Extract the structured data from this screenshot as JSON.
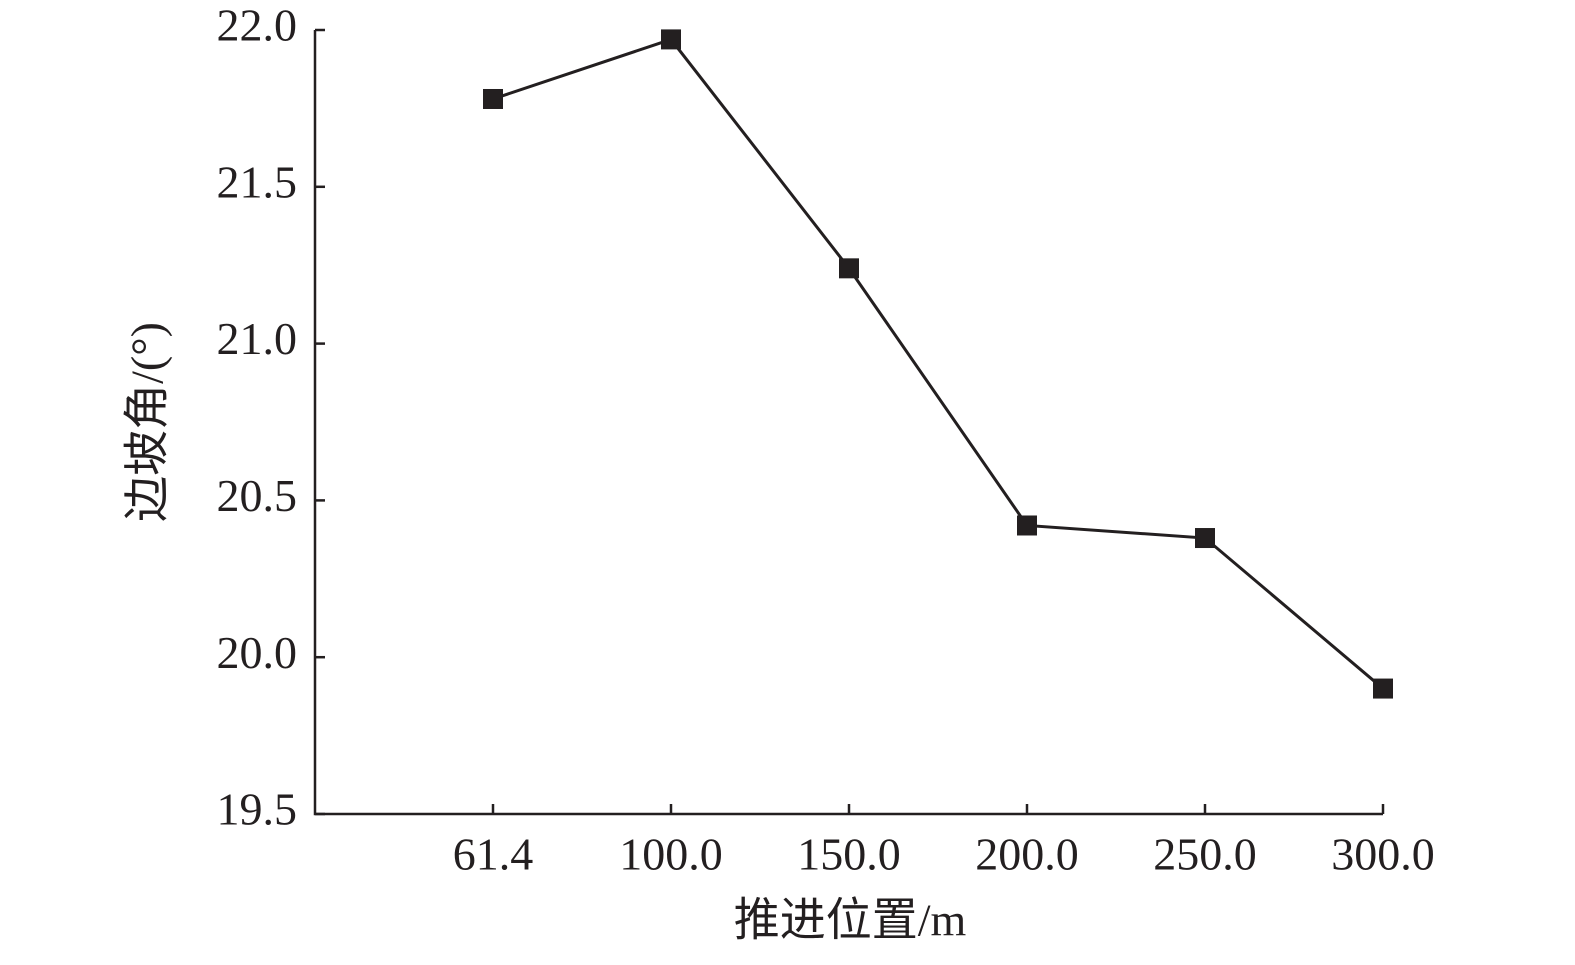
{
  "chart_data": {
    "type": "line",
    "x_label": "推进位置/m",
    "y_label": "边坡角/(°)",
    "categories": [
      "61.4",
      "100.0",
      "150.0",
      "200.0",
      "250.0",
      "300.0"
    ],
    "series": [
      {
        "color": "#231f20",
        "values": [
          21.78,
          21.97,
          21.24,
          20.42,
          20.38,
          19.9
        ]
      }
    ],
    "ylim": [
      19.5,
      22.0
    ],
    "yticks": [
      {
        "value": 19.5,
        "label": "19.5"
      },
      {
        "value": 20,
        "label": "20.0"
      },
      20.5,
      {
        "value": 21,
        "label": "21.0"
      },
      21.5,
      {
        "value": 22,
        "label": "22.0"
      }
    ],
    "grid": false
  }
}
